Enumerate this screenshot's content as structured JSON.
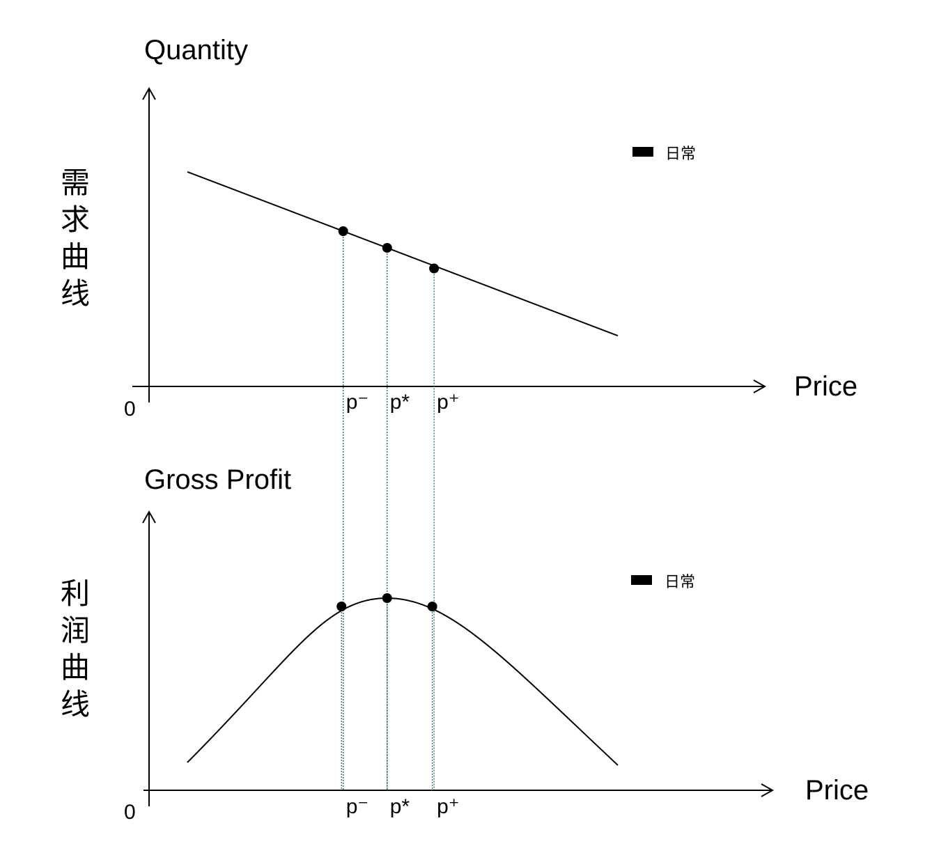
{
  "chart_data": [
    {
      "type": "line",
      "title": "Quantity",
      "side_label": "需求曲线",
      "xlabel": "Price",
      "origin_label": "0",
      "legend": {
        "label": "日常"
      },
      "series": [
        {
          "name": "日常",
          "values": [
            {
              "x": 0.0,
              "y": 0.72
            },
            {
              "x": 1.0,
              "y": 0.17
            }
          ]
        }
      ],
      "markers": [
        {
          "label": "p⁻",
          "x": 0.362,
          "y": 0.521
        },
        {
          "label": "p*",
          "x": 0.464,
          "y": 0.465
        },
        {
          "label": "p⁺",
          "x": 0.573,
          "y": 0.396
        }
      ]
    },
    {
      "type": "line",
      "title": "Gross Profit",
      "side_label": "利润曲线",
      "xlabel": "Price",
      "origin_label": "0",
      "legend": {
        "label": "日常"
      },
      "series": [
        {
          "name": "日常",
          "values": [
            {
              "x": 0.0,
              "y": 0.1
            },
            {
              "x": 0.464,
              "y": 0.69
            },
            {
              "x": 1.0,
              "y": 0.09
            }
          ]
        }
      ],
      "markers": [
        {
          "label": "p⁻",
          "x": 0.358,
          "y": 0.66
        },
        {
          "label": "p*",
          "x": 0.464,
          "y": 0.69
        },
        {
          "label": "p⁺",
          "x": 0.569,
          "y": 0.66
        }
      ]
    }
  ],
  "colors": {
    "curve": "#000000",
    "guide": "#2e6f72",
    "legend_swatch": "#000000"
  }
}
